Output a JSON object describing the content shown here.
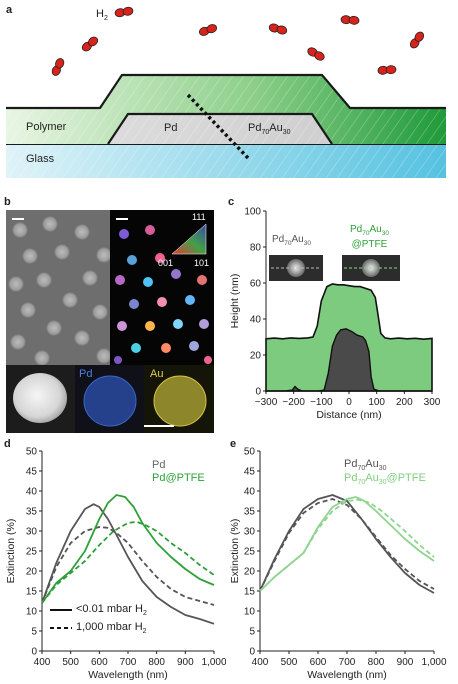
{
  "panel_labels": [
    "a",
    "b",
    "c",
    "d",
    "e"
  ],
  "schematic": {
    "gas_label": "H",
    "gas_sub": "2",
    "layers": {
      "polymer": "Polymer",
      "glass": "Glass",
      "pd": "Pd"
    },
    "alloy": {
      "base1": "Pd",
      "sub1": "70",
      "base2": "Au",
      "sub2": "30"
    }
  },
  "micrograph": {
    "colorbar_ticks": {
      "top": "111",
      "left": "001",
      "right": "101"
    },
    "eds_labels": {
      "pd": "Pd",
      "au": "Au"
    },
    "colors": {
      "pd_map": "#3a67c9",
      "au_map": "#d8c640"
    }
  },
  "inset_labels": {
    "left": {
      "base1": "Pd",
      "sub1": "70",
      "base2": "Au",
      "sub2": "30"
    },
    "right": {
      "base1": "Pd",
      "sub1": "70",
      "base2": "Au",
      "sub2": "30",
      "suffix": "@PTFE"
    }
  },
  "legend_d": {
    "series1": "Pd",
    "series2": "Pd@PTFE",
    "line1": "<0.01 mbar H",
    "line1_sub": "2",
    "line2": "1,000 mbar H",
    "line2_sub": "2"
  },
  "legend_e": {
    "series1_base1": "Pd",
    "series1_sub1": "70",
    "series1_base2": "Au",
    "series1_sub2": "30",
    "series2_suffix": "@PTFE"
  },
  "chart_data": [
    {
      "id": "c",
      "type": "area",
      "xlabel": "Distance (nm)",
      "ylabel": "Height (nm)",
      "xlim": [
        -300,
        300
      ],
      "ylim": [
        0,
        100
      ],
      "xticks": [
        -300,
        -200,
        -100,
        0,
        100,
        200,
        300
      ],
      "yticks": [
        0,
        20,
        40,
        60,
        80,
        100
      ],
      "colors": {
        "coated": "#7ccb7f",
        "bare": "#4a4a4a"
      },
      "series": [
        {
          "x": [
            -300,
            -270,
            -240,
            -210,
            -180,
            -150,
            -130,
            -115,
            -100,
            -80,
            -60,
            -40,
            -20,
            0,
            20,
            40,
            60,
            80,
            95,
            105,
            115,
            130,
            150,
            180,
            210,
            240,
            270,
            300
          ],
          "y": [
            29,
            29.4,
            29,
            29.5,
            29.2,
            29.5,
            30,
            36,
            50,
            58,
            59.5,
            59,
            59,
            58.5,
            58,
            58,
            57,
            56,
            52,
            42,
            32,
            29.5,
            29,
            29.4,
            29,
            29.3,
            28.8,
            29.2
          ]
        },
        {
          "x": [
            -300,
            -230,
            -205,
            -195,
            -185,
            -170,
            -140,
            -110,
            -90,
            -75,
            -60,
            -45,
            -30,
            -10,
            10,
            30,
            50,
            60,
            72,
            80,
            90,
            110,
            140,
            200,
            250,
            300
          ],
          "y": [
            0,
            0,
            0.5,
            2.5,
            1,
            0,
            0,
            0,
            0.5,
            10,
            25,
            31,
            34,
            34.5,
            33,
            31,
            30,
            28,
            22,
            8,
            1,
            0,
            0,
            0,
            0,
            0
          ]
        }
      ]
    },
    {
      "id": "d",
      "type": "line",
      "xlabel": "Wavelength (nm)",
      "ylabel": "Extinction (%)",
      "xlim": [
        400,
        1000
      ],
      "ylim": [
        0,
        50
      ],
      "xticks": [
        400,
        500,
        600,
        700,
        800,
        900,
        1000
      ],
      "xtick_labels": [
        "400",
        "500",
        "600",
        "700",
        "800",
        "900",
        "1,000"
      ],
      "yticks": [
        0,
        5,
        10,
        15,
        20,
        25,
        30,
        35,
        40,
        45,
        50
      ],
      "colors": {
        "Pd": "#555555",
        "Pd@PTFE": "#2ea038"
      },
      "series": [
        {
          "name": "Pd",
          "style": "solid",
          "x": [
            400,
            450,
            500,
            550,
            580,
            600,
            630,
            660,
            700,
            750,
            800,
            850,
            900,
            950,
            1000
          ],
          "y": [
            12,
            22,
            30,
            35.5,
            36.7,
            36,
            33,
            29,
            23.5,
            17.5,
            13.5,
            11,
            9,
            8,
            6.8
          ]
        },
        {
          "name": "Pd",
          "style": "dashed",
          "x": [
            400,
            450,
            500,
            550,
            600,
            630,
            660,
            700,
            750,
            800,
            850,
            900,
            950,
            1000
          ],
          "y": [
            12,
            21,
            27,
            30,
            31,
            30.8,
            29.5,
            27,
            22.5,
            18.5,
            15.5,
            13.5,
            12.5,
            11.5
          ]
        },
        {
          "name": "Pd@PTFE",
          "style": "solid",
          "x": [
            400,
            450,
            500,
            550,
            600,
            630,
            660,
            690,
            720,
            750,
            800,
            850,
            900,
            950,
            1000
          ],
          "y": [
            12,
            17,
            20,
            25,
            33,
            37,
            39,
            38.5,
            36,
            32,
            27,
            23.5,
            20.5,
            18,
            16.5
          ]
        },
        {
          "name": "Pd@PTFE",
          "style": "dashed",
          "x": [
            400,
            450,
            500,
            550,
            600,
            650,
            700,
            730,
            760,
            800,
            850,
            900,
            950,
            1000
          ],
          "y": [
            12,
            16.5,
            19.5,
            22.5,
            26.5,
            30,
            32,
            32.3,
            31.5,
            30,
            27,
            24.5,
            21.5,
            19
          ]
        }
      ]
    },
    {
      "id": "e",
      "type": "line",
      "xlabel": "Wavelength (nm)",
      "ylabel": "Extinction (%)",
      "xlim": [
        400,
        1000
      ],
      "ylim": [
        0,
        50
      ],
      "xticks": [
        400,
        500,
        600,
        700,
        800,
        900,
        1000
      ],
      "xtick_labels": [
        "400",
        "500",
        "600",
        "700",
        "800",
        "900",
        "1,000"
      ],
      "yticks": [
        0,
        5,
        10,
        15,
        20,
        25,
        30,
        35,
        40,
        45,
        50
      ],
      "colors": {
        "bare": "#555555",
        "coated": "#8fd48f"
      },
      "series": [
        {
          "name": "Pd70Au30",
          "style": "solid",
          "x": [
            400,
            450,
            500,
            550,
            600,
            650,
            700,
            750,
            800,
            850,
            900,
            950,
            1000
          ],
          "y": [
            15,
            23,
            30,
            35.5,
            38,
            39,
            37.5,
            33,
            28,
            23.5,
            19.5,
            16.5,
            14.5
          ]
        },
        {
          "name": "Pd70Au30",
          "style": "dashed",
          "x": [
            400,
            450,
            500,
            550,
            600,
            650,
            700,
            750,
            800,
            850,
            900,
            950,
            1000
          ],
          "y": [
            15,
            22.5,
            29.5,
            34.5,
            37,
            38,
            36.5,
            33,
            28.5,
            24,
            20.5,
            17.5,
            15.5
          ]
        },
        {
          "name": "Pd70Au30@PTFE",
          "style": "solid",
          "x": [
            400,
            450,
            500,
            550,
            600,
            650,
            700,
            730,
            760,
            800,
            850,
            900,
            950,
            1000
          ],
          "y": [
            15,
            18.5,
            21.5,
            24.5,
            31,
            36,
            38,
            38.5,
            37.5,
            35,
            31.5,
            28,
            25,
            22.5
          ]
        },
        {
          "name": "Pd70Au30@PTFE",
          "style": "dashed",
          "x": [
            400,
            450,
            500,
            550,
            600,
            650,
            700,
            740,
            780,
            820,
            860,
            900,
            950,
            1000
          ],
          "y": [
            15,
            18.5,
            21.5,
            24.5,
            30.5,
            35,
            37.5,
            37.8,
            37,
            35,
            32.5,
            30,
            26.5,
            23.5
          ]
        }
      ]
    }
  ]
}
